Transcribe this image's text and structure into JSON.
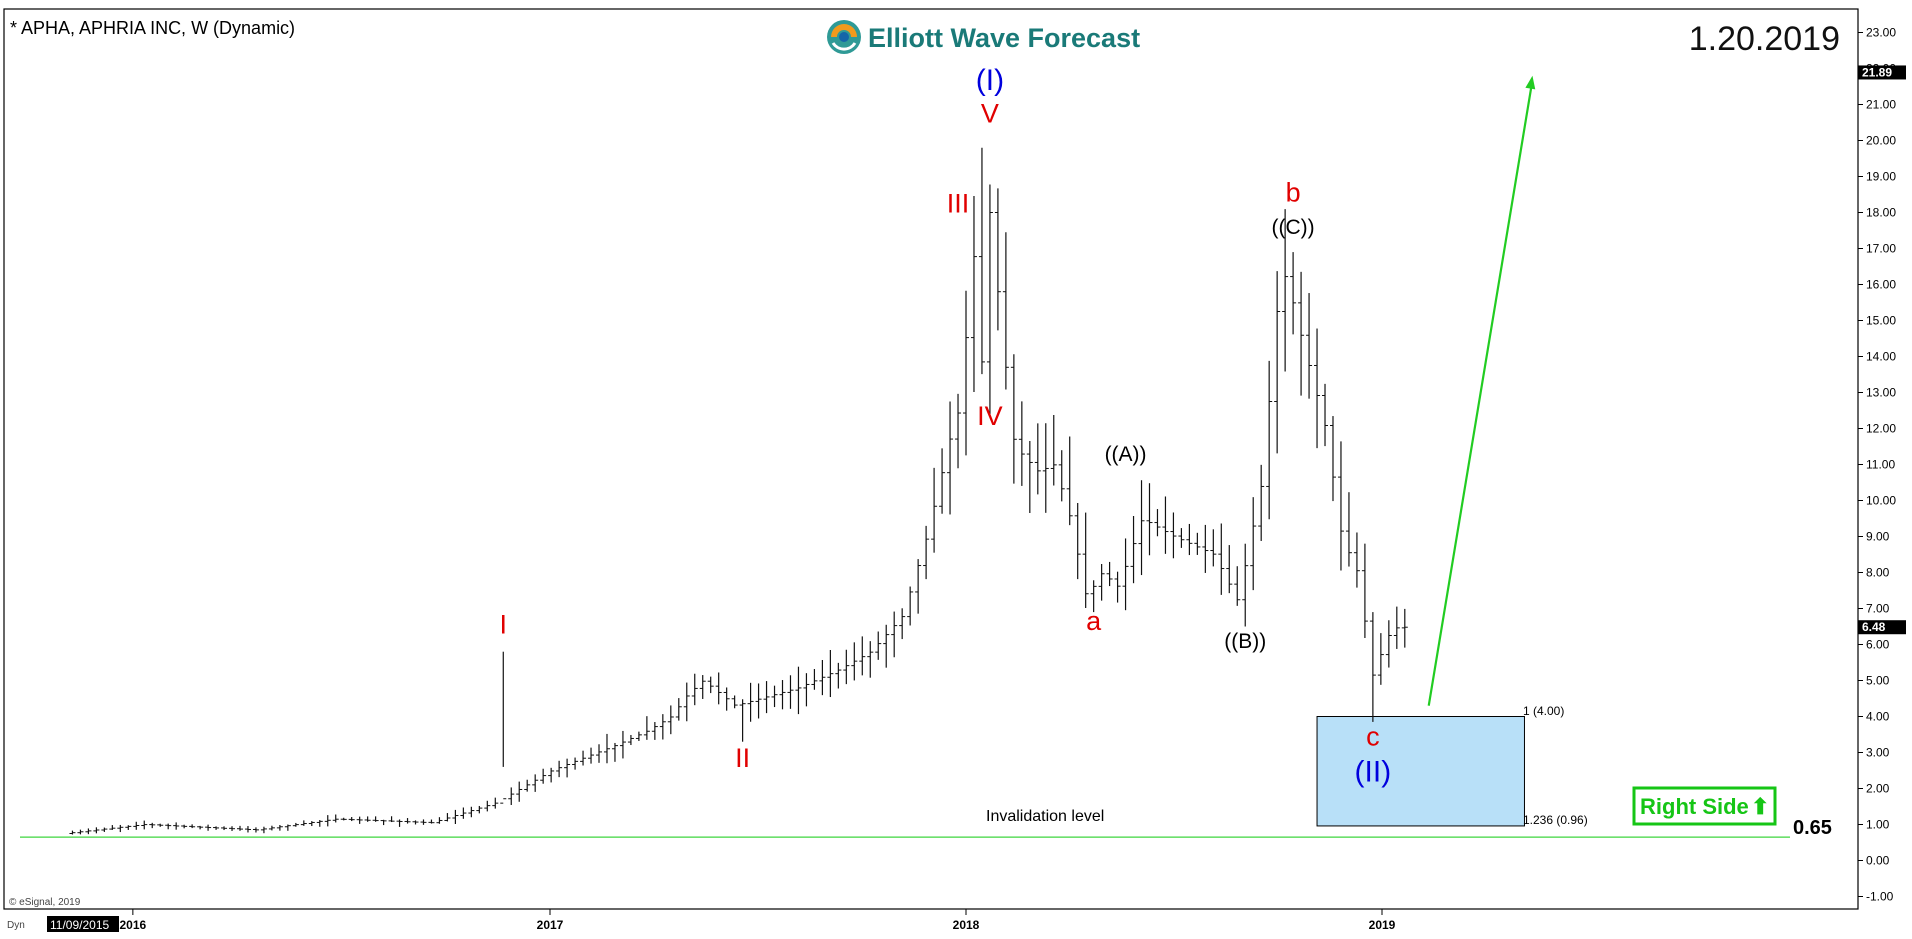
{
  "header": {
    "title": "* APHA, APHRIA INC, W (Dynamic)",
    "date": "1.20.2019",
    "logo_text": "Elliott Wave Forecast"
  },
  "footer": {
    "copyright": "© eSignal, 2019",
    "dyn_label": "Dyn",
    "start_date": "11/09/2015"
  },
  "chart_data": {
    "type": "ohlc",
    "frequency": "weekly",
    "symbol": "APHA",
    "y_axis": {
      "side": "right",
      "range": [
        -1.0,
        23.0
      ],
      "ticks": [
        -1.0,
        0.0,
        1.0,
        2.0,
        3.0,
        4.0,
        5.0,
        6.0,
        7.0,
        8.0,
        9.0,
        10.0,
        11.0,
        12.0,
        13.0,
        14.0,
        15.0,
        16.0,
        17.0,
        18.0,
        19.0,
        20.0,
        21.0,
        22.0,
        23.0
      ],
      "tick_labels": [
        "-1.00",
        "0.00",
        "1.00",
        "2.00",
        "3.00",
        "4.00",
        "5.00",
        "6.00",
        "7.00",
        "8.00",
        "9.00",
        "10.00",
        "11.00",
        "12.00",
        "13.00",
        "14.00",
        "15.00",
        "16.00",
        "17.00",
        "18.00",
        "19.00",
        "20.00",
        "21.00",
        "22.00",
        "23.00"
      ]
    },
    "x_axis": {
      "range": [
        "2015-11-09",
        "2019-05-26"
      ],
      "ticks": [
        {
          "date": "2016-01-01",
          "label": "2016"
        },
        {
          "date": "2017-01-01",
          "label": "2017"
        },
        {
          "date": "2018-01-01",
          "label": "2018"
        },
        {
          "date": "2019-01-01",
          "label": "2019"
        }
      ]
    },
    "grid": false,
    "price_tags": [
      {
        "value": 21.89,
        "label": "21.89"
      },
      {
        "value": 6.48,
        "label": "6.48"
      }
    ],
    "anchors": [
      {
        "date": "2015-11-09",
        "price": 0.75
      },
      {
        "date": "2016-01-18",
        "price": 1.0
      },
      {
        "date": "2016-04-25",
        "price": 0.85
      },
      {
        "date": "2016-07-04",
        "price": 1.15
      },
      {
        "date": "2016-09-26",
        "price": 1.05
      },
      {
        "date": "2016-11-21",
        "price": 1.6
      },
      {
        "date": "2017-01-09",
        "price": 2.5
      },
      {
        "date": "2017-03-06",
        "price": 3.2
      },
      {
        "date": "2017-04-03",
        "price": 3.6
      },
      {
        "date": "2017-04-24",
        "price": 4.0
      },
      {
        "date": "2017-05-08",
        "price": 4.6
      },
      {
        "date": "2017-05-22",
        "price": 5.0
      },
      {
        "date": "2017-06-19",
        "price": 4.3
      },
      {
        "date": "2017-08-14",
        "price": 4.8
      },
      {
        "date": "2017-09-18",
        "price": 5.3
      },
      {
        "date": "2017-10-16",
        "price": 5.8
      },
      {
        "date": "2017-11-13",
        "price": 6.8
      },
      {
        "date": "2017-12-04",
        "price": 9.0
      },
      {
        "date": "2017-12-25",
        "price": 11.8
      },
      {
        "date": "2018-01-01",
        "price": 12.5
      },
      {
        "date": "2018-01-15",
        "price": 17.0
      },
      {
        "date": "2018-01-22",
        "price": 13.5
      },
      {
        "date": "2018-01-29",
        "price": 18.5
      },
      {
        "date": "2018-02-05",
        "price": 15.5
      },
      {
        "date": "2018-02-19",
        "price": 11.5
      },
      {
        "date": "2018-03-12",
        "price": 10.8
      },
      {
        "date": "2018-03-26",
        "price": 11.0
      },
      {
        "date": "2018-04-09",
        "price": 9.5
      },
      {
        "date": "2018-04-23",
        "price": 7.3
      },
      {
        "date": "2018-05-07",
        "price": 8.0
      },
      {
        "date": "2018-05-21",
        "price": 7.6
      },
      {
        "date": "2018-06-11",
        "price": 9.5
      },
      {
        "date": "2018-07-09",
        "price": 9.0
      },
      {
        "date": "2018-08-13",
        "price": 8.5
      },
      {
        "date": "2018-09-03",
        "price": 7.2
      },
      {
        "date": "2018-09-24",
        "price": 10.5
      },
      {
        "date": "2018-10-08",
        "price": 15.5
      },
      {
        "date": "2018-10-15",
        "price": 16.3
      },
      {
        "date": "2018-10-29",
        "price": 14.5
      },
      {
        "date": "2018-11-19",
        "price": 12.0
      },
      {
        "date": "2018-12-03",
        "price": 9.0
      },
      {
        "date": "2018-12-17",
        "price": 8.0
      },
      {
        "date": "2018-12-31",
        "price": 5.0
      },
      {
        "date": "2019-01-07",
        "price": 5.8
      },
      {
        "date": "2019-01-14",
        "price": 6.3
      },
      {
        "date": "2019-01-21",
        "price": 6.48
      }
    ],
    "extremes": [
      {
        "date": "2016-11-21",
        "high": 5.8,
        "low": 2.6
      },
      {
        "date": "2017-06-19",
        "low": 3.3
      },
      {
        "date": "2018-01-15",
        "high": 19.8
      },
      {
        "date": "2018-01-22",
        "low": 12.4
      },
      {
        "date": "2018-04-23",
        "low": 6.9
      },
      {
        "date": "2018-09-03",
        "low": 6.5
      },
      {
        "date": "2018-10-15",
        "high": 16.9
      },
      {
        "date": "2018-12-24",
        "high": 6.9,
        "low": 3.85
      }
    ],
    "wave_labels": [
      {
        "text": "I",
        "color": "red",
        "date": "2016-11-21",
        "price": 6.3
      },
      {
        "text": "II",
        "color": "red",
        "date": "2017-06-19",
        "price": 2.6
      },
      {
        "text": "III",
        "color": "red",
        "date": "2017-12-25",
        "price": 18.0
      },
      {
        "text": "IV",
        "color": "red",
        "date": "2018-01-22",
        "price": 12.1
      },
      {
        "text": "V",
        "color": "red",
        "date": "2018-01-22",
        "price": 20.5
      },
      {
        "text": "(I)",
        "color": "blue",
        "date": "2018-01-22",
        "price": 21.4
      },
      {
        "text": "a",
        "color": "red",
        "date": "2018-04-23",
        "price": 6.4
      },
      {
        "text": "((A))",
        "color": "black",
        "date": "2018-05-21",
        "price": 11.1
      },
      {
        "text": "((B))",
        "color": "black",
        "date": "2018-09-03",
        "price": 5.9
      },
      {
        "text": "((C))",
        "color": "black",
        "date": "2018-10-15",
        "price": 17.4
      },
      {
        "text": "b",
        "color": "red",
        "date": "2018-10-15",
        "price": 18.3
      },
      {
        "text": "c",
        "color": "red",
        "date": "2018-12-24",
        "price": 3.2
      },
      {
        "text": "(II)",
        "color": "blue",
        "date": "2018-12-24",
        "price": 2.2
      }
    ],
    "target_box": {
      "date_start": "2018-11-05",
      "date_end": "2019-05-06",
      "top": 4.0,
      "bottom": 0.96,
      "top_label": "1 (4.00)",
      "bottom_label": "1.236 (0.96)",
      "color": "#b8e0f8"
    },
    "invalidation": {
      "value": 0.65,
      "label": "Invalidation level",
      "value_label": "0.65",
      "color": "#3ed63e"
    },
    "projection_arrow": {
      "from": {
        "date": "2019-02-11",
        "price": 4.3
      },
      "to": {
        "date": "2019-05-13",
        "price": 21.8
      },
      "color": "#22cc22"
    },
    "right_side": {
      "label": "Right Side",
      "arrow": "⬆",
      "color": "#16c516"
    }
  }
}
